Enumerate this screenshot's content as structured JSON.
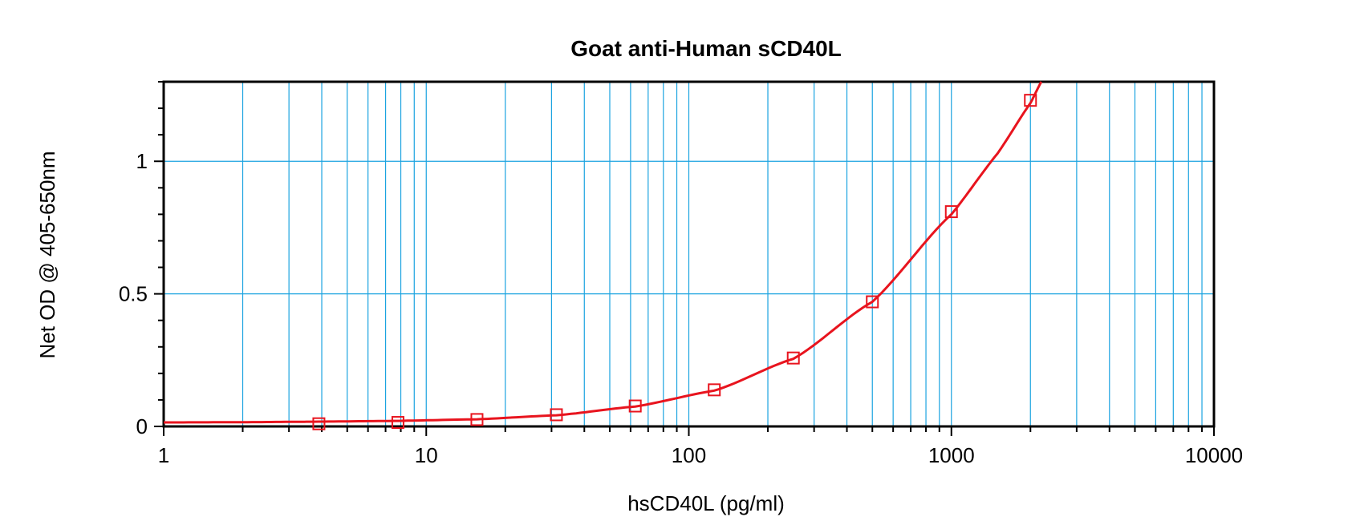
{
  "chart_data": {
    "type": "scatter",
    "title": "Goat anti-Human sCD40L",
    "xlabel": "hsCD40L (pg/ml)",
    "ylabel": "Net OD @ 405-650nm",
    "x_scale": "log",
    "xlim": [
      1,
      10000
    ],
    "ylim": [
      0,
      1.3
    ],
    "x_ticks": [
      "1",
      "10",
      "100",
      "1000",
      "10000"
    ],
    "y_ticks": [
      "0",
      "0.5",
      "1"
    ],
    "grid": true,
    "legend": "none",
    "series": [
      {
        "x": [
          3.9,
          7.8,
          15.6,
          31.3,
          62.5,
          125,
          250,
          500,
          1000,
          2000
        ],
        "y": [
          0.01,
          0.015,
          0.026,
          0.044,
          0.077,
          0.138,
          0.258,
          0.47,
          0.81,
          1.23
        ],
        "marker": "open-square",
        "color": "#e8141e"
      }
    ],
    "fit_curve": {
      "type": "4PL",
      "color": "#e8141e",
      "x": [
        1,
        2,
        3.9,
        7.8,
        15.6,
        31.3,
        62.5,
        125,
        250,
        500,
        1000,
        1500,
        2000,
        2200
      ],
      "y": [
        0.015,
        0.016,
        0.018,
        0.021,
        0.027,
        0.042,
        0.075,
        0.135,
        0.255,
        0.47,
        0.8,
        1.03,
        1.22,
        1.3
      ]
    }
  }
}
